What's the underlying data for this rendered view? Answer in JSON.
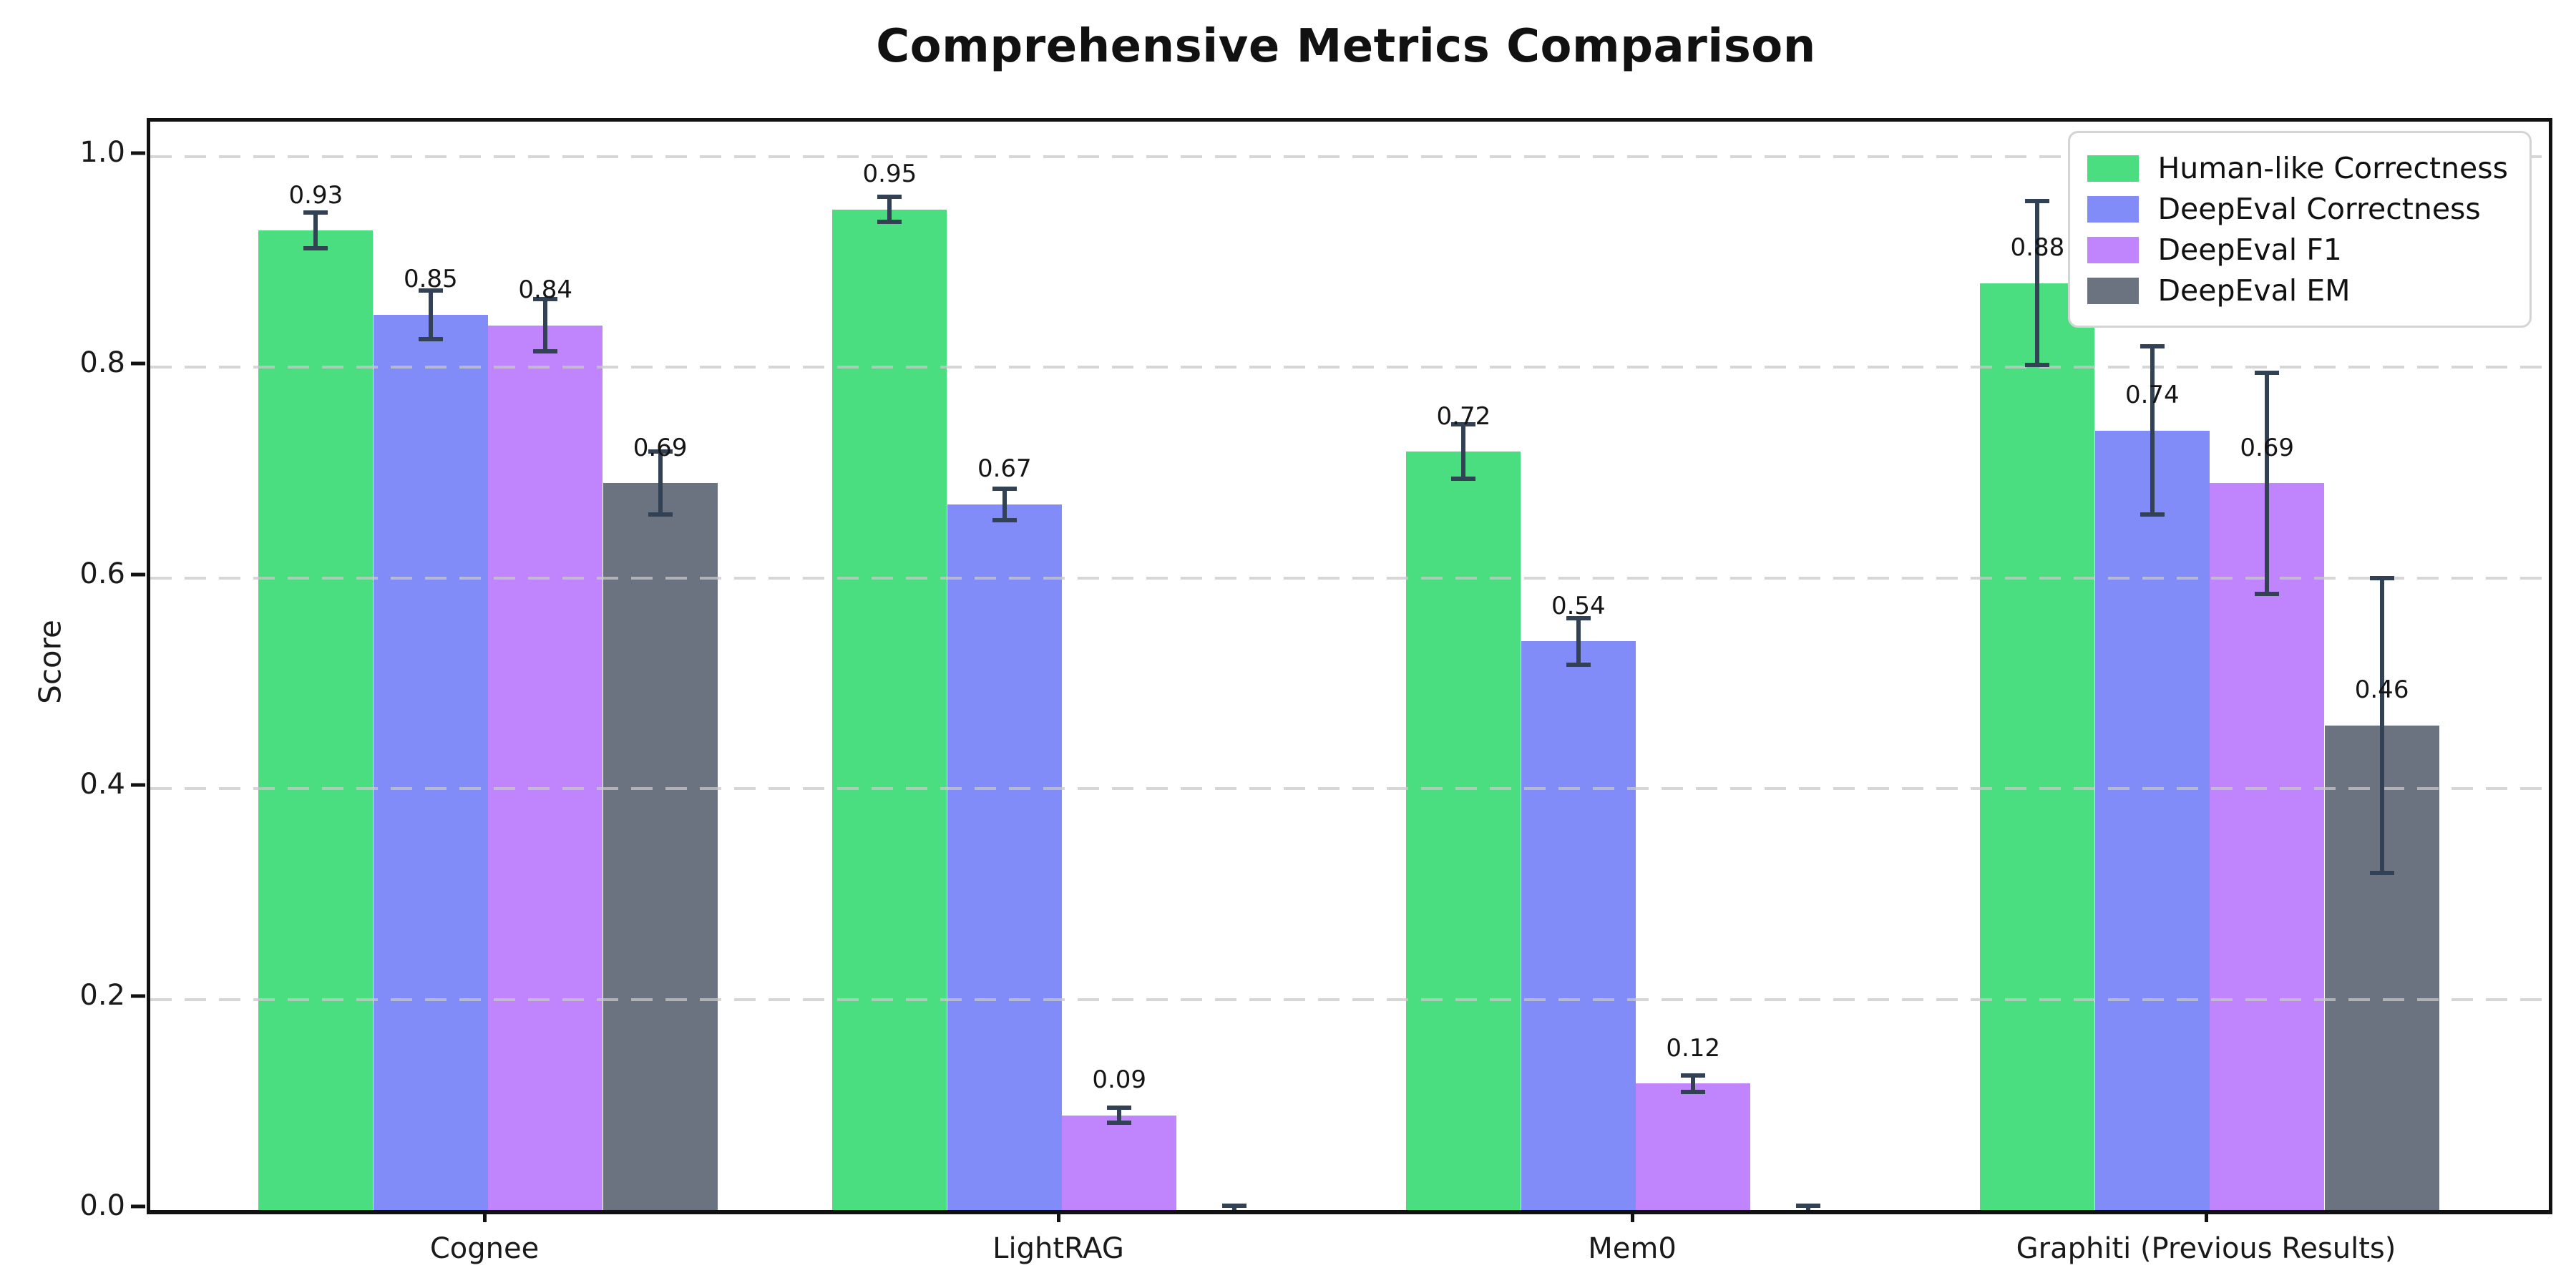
{
  "chart_data": {
    "type": "bar",
    "title": "Comprehensive Metrics Comparison",
    "xlabel": "",
    "ylabel": "Score",
    "ylim": [
      0,
      1.033
    ],
    "yticks": [
      0.0,
      0.2,
      0.4,
      0.6,
      0.8,
      1.0
    ],
    "ytick_labels": [
      "0.0",
      "0.2",
      "0.4",
      "0.6",
      "0.8",
      "1.0"
    ],
    "grid": "horizontal-dashed",
    "legend_position": "upper right",
    "categories": [
      "Cognee",
      "LightRAG",
      "Mem0",
      "Graphiti (Previous Results)"
    ],
    "series": [
      {
        "name": "Human-like Correctness",
        "color": "#4ade80",
        "values": [
          0.93,
          0.95,
          0.72,
          0.88
        ],
        "errors": [
          0.017,
          0.012,
          0.026,
          0.078
        ],
        "labels": [
          "0.93",
          "0.95",
          "0.72",
          "0.88"
        ]
      },
      {
        "name": "DeepEval Correctness",
        "color": "#818cf8",
        "values": [
          0.85,
          0.67,
          0.54,
          0.74
        ],
        "errors": [
          0.023,
          0.015,
          0.022,
          0.08
        ],
        "labels": [
          "0.85",
          "0.67",
          "0.54",
          "0.74"
        ]
      },
      {
        "name": "DeepEval F1",
        "color": "#c084fc",
        "values": [
          0.84,
          0.09,
          0.12,
          0.69
        ],
        "errors": [
          0.025,
          0.007,
          0.008,
          0.105
        ],
        "labels": [
          "0.84",
          "0.09",
          "0.12",
          "0.69"
        ]
      },
      {
        "name": "DeepEval EM",
        "color": "#6b7280",
        "values": [
          0.69,
          0.0,
          0.0,
          0.46
        ],
        "errors": [
          0.03,
          0.004,
          0.004,
          0.14
        ],
        "labels": [
          "0.69",
          null,
          null,
          "0.46"
        ]
      }
    ],
    "colors": {
      "error_bar": "#334155",
      "gridline": "#d0d0d0",
      "axis": "#111111",
      "background": "#ffffff"
    }
  }
}
